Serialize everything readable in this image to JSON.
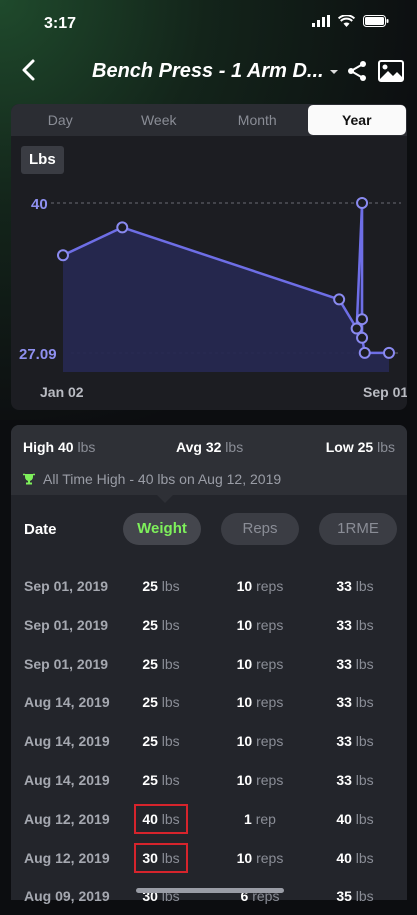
{
  "status": {
    "time": "3:17"
  },
  "nav": {
    "title": "Bench Press - 1 Arm D..."
  },
  "tabs": [
    {
      "label": "Day",
      "active": false
    },
    {
      "label": "Week",
      "active": false
    },
    {
      "label": "Month",
      "active": false
    },
    {
      "label": "Year",
      "active": true
    }
  ],
  "chart": {
    "unit_label": "Lbs",
    "y_max_label": "40",
    "y_min_label": "27.09",
    "x_start_label": "Jan 02",
    "x_end_label": "Sep 01"
  },
  "chart_data": {
    "type": "area",
    "xlabel": "",
    "ylabel": "Lbs",
    "ylim": [
      27.09,
      40
    ],
    "xlim": [
      "2019-01-02",
      "2019-09-01"
    ],
    "x": [
      "2019-01-02",
      "2019-02-15",
      "2019-07-26",
      "2019-08-08",
      "2019-08-12",
      "2019-08-12",
      "2019-08-12",
      "2019-08-14",
      "2019-09-01"
    ],
    "values": [
      35.5,
      37.9,
      31.7,
      29.2,
      40.0,
      30.0,
      28.4,
      27.1,
      27.1
    ],
    "colors": {
      "line": "#6e6ee6",
      "fill": "#262850",
      "grid": "#6a6c74"
    }
  },
  "stats": {
    "high_label": "High",
    "high_value": "40",
    "avg_label": "Avg",
    "avg_value": "32",
    "low_label": "Low",
    "low_value": "25",
    "unit": "lbs",
    "all_time_high": "All Time High - 40 lbs on Aug 12, 2019"
  },
  "columns": {
    "date": "Date",
    "weight": "Weight",
    "reps": "Reps",
    "orm": "1RME"
  },
  "rows": [
    {
      "date": "Sep 01, 2019",
      "weight": "25",
      "weight_unit": "lbs",
      "reps": "10",
      "reps_unit": "reps",
      "orm": "33",
      "orm_unit": "lbs",
      "highlight": false
    },
    {
      "date": "Sep 01, 2019",
      "weight": "25",
      "weight_unit": "lbs",
      "reps": "10",
      "reps_unit": "reps",
      "orm": "33",
      "orm_unit": "lbs",
      "highlight": false
    },
    {
      "date": "Sep 01, 2019",
      "weight": "25",
      "weight_unit": "lbs",
      "reps": "10",
      "reps_unit": "reps",
      "orm": "33",
      "orm_unit": "lbs",
      "highlight": false
    },
    {
      "date": "Aug 14, 2019",
      "weight": "25",
      "weight_unit": "lbs",
      "reps": "10",
      "reps_unit": "reps",
      "orm": "33",
      "orm_unit": "lbs",
      "highlight": false
    },
    {
      "date": "Aug 14, 2019",
      "weight": "25",
      "weight_unit": "lbs",
      "reps": "10",
      "reps_unit": "reps",
      "orm": "33",
      "orm_unit": "lbs",
      "highlight": false
    },
    {
      "date": "Aug 14, 2019",
      "weight": "25",
      "weight_unit": "lbs",
      "reps": "10",
      "reps_unit": "reps",
      "orm": "33",
      "orm_unit": "lbs",
      "highlight": false
    },
    {
      "date": "Aug 12, 2019",
      "weight": "40",
      "weight_unit": "lbs",
      "reps": "1",
      "reps_unit": "rep",
      "orm": "40",
      "orm_unit": "lbs",
      "highlight": true
    },
    {
      "date": "Aug 12, 2019",
      "weight": "30",
      "weight_unit": "lbs",
      "reps": "10",
      "reps_unit": "reps",
      "orm": "40",
      "orm_unit": "lbs",
      "highlight": true
    },
    {
      "date": "Aug 09, 2019",
      "weight": "30",
      "weight_unit": "lbs",
      "reps": "6",
      "reps_unit": "reps",
      "orm": "35",
      "orm_unit": "lbs",
      "highlight": false
    }
  ]
}
